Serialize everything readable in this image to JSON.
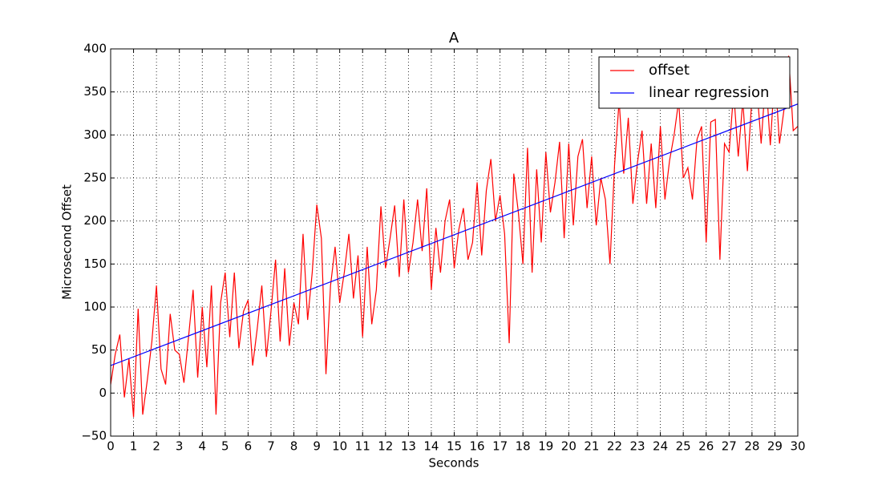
{
  "chart_data": {
    "type": "line",
    "title": "A",
    "x_label": "Seconds",
    "y_label": "Microsecond Offset",
    "xlim": [
      0,
      30
    ],
    "ylim": [
      -50,
      400
    ],
    "xticks": [
      0,
      1,
      2,
      3,
      4,
      5,
      6,
      7,
      8,
      9,
      10,
      11,
      12,
      13,
      14,
      15,
      16,
      17,
      18,
      19,
      20,
      21,
      22,
      23,
      24,
      25,
      26,
      27,
      28,
      29,
      30
    ],
    "yticks": [
      {
        "value": -50,
        "label": "−50"
      },
      0,
      50,
      100,
      150,
      200,
      250,
      300,
      350,
      400
    ],
    "grid": true,
    "legend": "upper right",
    "series": [
      {
        "name": "offset",
        "color": "#ff0000",
        "x": [
          0,
          0.2,
          0.4,
          0.6,
          0.8,
          1,
          1.2,
          1.4,
          1.6,
          1.8,
          2,
          2.2,
          2.4,
          2.6,
          2.8,
          3,
          3.2,
          3.4,
          3.6,
          3.8,
          4,
          4.2,
          4.4,
          4.6,
          4.8,
          5,
          5.2,
          5.4,
          5.6,
          5.8,
          6,
          6.2,
          6.4,
          6.6,
          6.8,
          7,
          7.2,
          7.4,
          7.6,
          7.8,
          8,
          8.2,
          8.4,
          8.6,
          8.8,
          9,
          9.2,
          9.4,
          9.6,
          9.8,
          10,
          10.2,
          10.4,
          10.6,
          10.8,
          11,
          11.2,
          11.4,
          11.6,
          11.8,
          12,
          12.2,
          12.4,
          12.6,
          12.8,
          13,
          13.2,
          13.4,
          13.6,
          13.8,
          14,
          14.2,
          14.4,
          14.6,
          14.8,
          15,
          15.2,
          15.4,
          15.6,
          15.8,
          16,
          16.2,
          16.4,
          16.6,
          16.8,
          17,
          17.2,
          17.4,
          17.6,
          17.8,
          18,
          18.2,
          18.4,
          18.6,
          18.8,
          19,
          19.2,
          19.4,
          19.6,
          19.8,
          20,
          20.2,
          20.4,
          20.6,
          20.8,
          21,
          21.2,
          21.4,
          21.6,
          21.8,
          22,
          22.2,
          22.4,
          22.6,
          22.8,
          23,
          23.2,
          23.4,
          23.6,
          23.8,
          24,
          24.2,
          24.4,
          24.6,
          24.8,
          25,
          25.2,
          25.4,
          25.6,
          25.8,
          26,
          26.2,
          26.4,
          26.6,
          26.8,
          27,
          27.2,
          27.4,
          27.6,
          27.8,
          28,
          28.2,
          28.4,
          28.6,
          28.8,
          29,
          29.2,
          29.4,
          29.6,
          29.8,
          30
        ],
        "values": [
          10,
          45,
          68,
          -5,
          40,
          -28,
          98,
          -25,
          15,
          60,
          125,
          28,
          10,
          92,
          50,
          45,
          12,
          65,
          120,
          18,
          100,
          30,
          125,
          -25,
          105,
          140,
          65,
          140,
          52,
          95,
          108,
          32,
          75,
          125,
          42,
          95,
          155,
          60,
          145,
          55,
          105,
          80,
          185,
          85,
          140,
          219,
          180,
          22,
          125,
          170,
          105,
          140,
          185,
          110,
          160,
          65,
          170,
          80,
          120,
          217,
          145,
          180,
          218,
          135,
          225,
          140,
          175,
          225,
          165,
          238,
          120,
          192,
          140,
          200,
          225,
          145,
          190,
          215,
          155,
          175,
          245,
          160,
          235,
          272,
          200,
          230,
          185,
          58,
          255,
          210,
          150,
          285,
          140,
          260,
          175,
          280,
          210,
          245,
          292,
          180,
          290,
          195,
          275,
          295,
          215,
          275,
          195,
          250,
          225,
          150,
          265,
          340,
          255,
          320,
          220,
          268,
          305,
          220,
          290,
          215,
          310,
          225,
          270,
          300,
          340,
          250,
          262,
          225,
          295,
          310,
          175,
          315,
          318,
          155,
          290,
          280,
          350,
          275,
          340,
          258,
          345,
          360,
          290,
          368,
          288,
          375,
          290,
          330,
          392,
          305,
          310
        ]
      },
      {
        "name": "linear regression",
        "color": "#0000ff",
        "x": [
          0,
          30
        ],
        "values": [
          32,
          336
        ]
      }
    ]
  }
}
